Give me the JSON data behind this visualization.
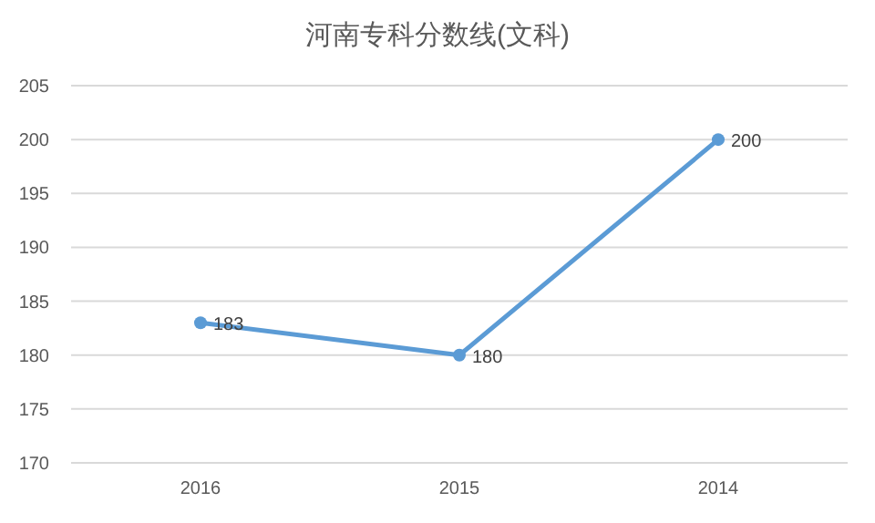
{
  "chart_data": {
    "type": "line",
    "title": "河南专科分数线(文科)",
    "categories": [
      "2016",
      "2015",
      "2014"
    ],
    "series": [
      {
        "color": "#5b9bd5",
        "values": [
          183,
          180,
          200
        ]
      }
    ],
    "ylim": [
      170,
      205
    ],
    "yticks": [
      170,
      175,
      180,
      185,
      190,
      195,
      200,
      205
    ],
    "grid": "y",
    "marker": "circle",
    "data_labels": true
  }
}
